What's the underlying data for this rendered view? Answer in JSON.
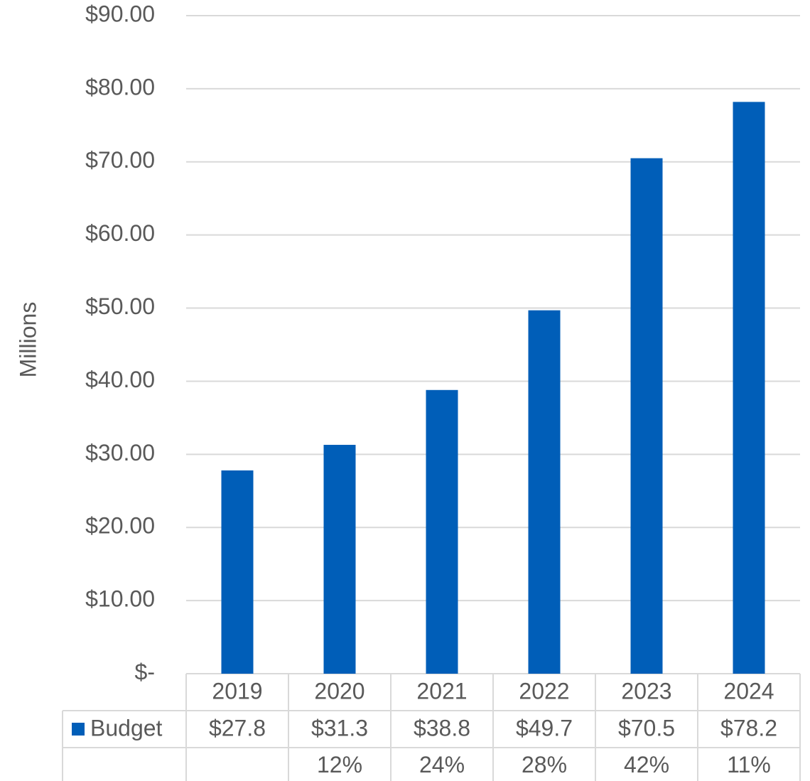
{
  "chart_data": {
    "type": "bar",
    "y_axis_label": "Millions",
    "categories": [
      "2019",
      "2020",
      "2021",
      "2022",
      "2023",
      "2024"
    ],
    "series": [
      {
        "name": "Budget",
        "color": "#005eb8",
        "values": [
          27.8,
          31.3,
          38.8,
          49.7,
          70.5,
          78.2
        ],
        "value_labels": [
          "$27.8",
          "$31.3",
          "$38.8",
          "$49.7",
          "$70.5",
          "$78.2"
        ]
      }
    ],
    "growth_labels": [
      null,
      "12%",
      "24%",
      "28%",
      "42%",
      "11%"
    ],
    "ylim": [
      0,
      90
    ],
    "yticks": [
      {
        "value": 0,
        "label": "$-"
      },
      {
        "value": 10,
        "label": "$10.00"
      },
      {
        "value": 20,
        "label": "$20.00"
      },
      {
        "value": 30,
        "label": "$30.00"
      },
      {
        "value": 40,
        "label": "$40.00"
      },
      {
        "value": 50,
        "label": "$50.00"
      },
      {
        "value": 60,
        "label": "$60.00"
      },
      {
        "value": 70,
        "label": "$70.00"
      },
      {
        "value": 80,
        "label": "$80.00"
      },
      {
        "value": 90,
        "label": "$90.00"
      }
    ],
    "grid": true
  }
}
